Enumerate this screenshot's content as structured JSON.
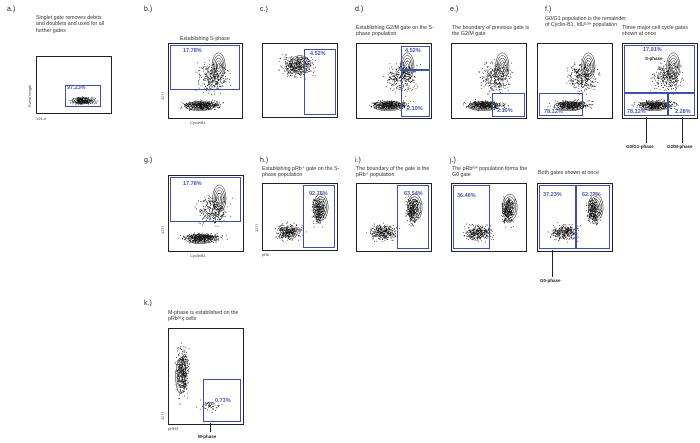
{
  "panels": [
    {
      "id": "a",
      "label": "a.)",
      "caption": "Singlet gate removes debris and doublets and used for all further gates",
      "ylabel": "Event length",
      "xlabel": "191-Ir",
      "gates": [
        {
          "pct": "97.23%"
        }
      ]
    },
    {
      "id": "b",
      "label": "b.)",
      "caption": "Establishing S-phase",
      "ylabel": "127I",
      "xlabel": "CyclinB1",
      "gates": [
        {
          "pct": "17.78%"
        }
      ]
    },
    {
      "id": "c",
      "label": "c.)",
      "caption": "",
      "ylabel": "",
      "xlabel": "",
      "gates": [
        {
          "pct": "4.52%"
        }
      ]
    },
    {
      "id": "d",
      "label": "d.)",
      "caption": "Establishing G2/M gate on the S-phase population",
      "ylabel": "",
      "xlabel": "",
      "gates": [
        {
          "pct": "4.52%"
        },
        {
          "pct": "2.10%"
        }
      ]
    },
    {
      "id": "e",
      "label": "e.)",
      "caption": "The boundary of previous gate is the G2/M gate",
      "ylabel": "",
      "xlabel": "",
      "gates": [
        {
          "pct": "2.10%"
        }
      ]
    },
    {
      "id": "f",
      "label": "f.)",
      "caption": "G0/G1 population is the remainder of Cyclin-B1, IdUᴸᵒʷ population",
      "ylabel": "",
      "xlabel": "",
      "gates": [
        {
          "pct": "78.12%"
        }
      ]
    },
    {
      "id": "f2",
      "label": "",
      "caption": "Three major cell cycle gates shown at once",
      "ylabel": "",
      "xlabel": "",
      "gates": [
        {
          "pct": "17.91%"
        },
        {
          "pct": "78.12%"
        },
        {
          "pct": "2.28%"
        }
      ],
      "notes": [
        "S-phase"
      ]
    },
    {
      "id": "g",
      "label": "g.)",
      "caption": "",
      "ylabel": "127I",
      "xlabel": "CyclinB1",
      "gates": [
        {
          "pct": "17.78%"
        }
      ]
    },
    {
      "id": "h",
      "label": "h.)",
      "caption": "Establishing pRb⁺ gate on the S-phase population",
      "ylabel": "127I",
      "xlabel": "pRb",
      "gates": [
        {
          "pct": "92.75%"
        }
      ]
    },
    {
      "id": "i",
      "label": "i.)",
      "caption": "The boundary of the gate is the pRb⁺ population",
      "ylabel": "",
      "xlabel": "",
      "gates": [
        {
          "pct": "63.54%"
        }
      ]
    },
    {
      "id": "j",
      "label": "j.)",
      "caption": "The pRbˡᵒʷ population forms the G0 gate",
      "ylabel": "",
      "xlabel": "",
      "gates": [
        {
          "pct": "36.46%"
        }
      ]
    },
    {
      "id": "j2",
      "label": "",
      "caption": "Both gates shown at once",
      "ylabel": "",
      "xlabel": "",
      "gates": [
        {
          "pct": "37.23%"
        },
        {
          "pct": "62.77%"
        }
      ]
    },
    {
      "id": "k",
      "label": "k.)",
      "caption": "M-phase is established on the pRbˢᵉᶍ cells",
      "ylabel": "127I",
      "xlabel": "pHH3",
      "gates": [
        {
          "pct": "0.73%"
        }
      ]
    }
  ],
  "phase_labels": {
    "g0g1": "G0/G1-phase",
    "g2m": "G2/M-phase",
    "g0": "G0-phase",
    "m": "M-phase"
  },
  "colors": {
    "gate": "#3d4fb0",
    "pct": "#4a53b8",
    "points": "#111111"
  }
}
